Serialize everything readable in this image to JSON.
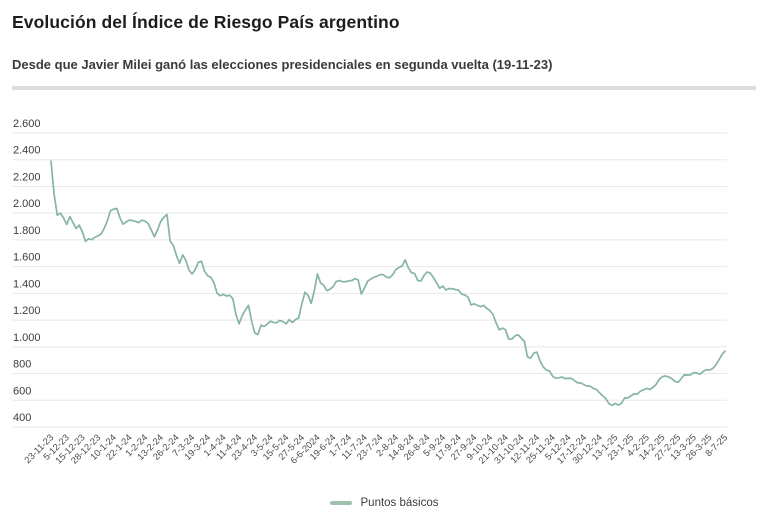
{
  "header": {
    "title": "Evolución del Índice de Riesgo País argentino",
    "subtitle": "Desde que Javier Milei ganó las elecciones presidenciales en segunda vuelta (19-11-23)"
  },
  "legend": {
    "label": "Puntos básicos",
    "swatch_color": "#9cc2b0"
  },
  "chart_data": {
    "type": "line",
    "title": "Evolución del Índice de Riesgo País argentino",
    "series_name": "Puntos básicos",
    "ylabel": "Puntos básicos",
    "ylim": [
      400,
      2600
    ],
    "grid": true,
    "legend_position": "bottom",
    "line_color": "#86b5a0",
    "grid_color": "#e8e8e8",
    "y_tick_color": "#3d3d3d",
    "x_tick_color": "#4a4a4a",
    "y_ticks": [
      400,
      600,
      800,
      1000,
      1200,
      1400,
      1600,
      1800,
      2000,
      2200,
      2400,
      2600
    ],
    "y_tick_labels": [
      "400",
      "600",
      "800",
      "1.000",
      "1.200",
      "1.400",
      "1.600",
      "1.800",
      "2.000",
      "2.200",
      "2.400",
      "2.600"
    ],
    "x_labels": [
      "23-11-23",
      "5-12-23",
      "15-12-23",
      "28-12-23",
      "10-1-24",
      "22-1-24",
      "1-2-24",
      "13-2-24",
      "26-2-24",
      "7-3-24",
      "19-3-24",
      "1-4-24",
      "11-4-24",
      "23-4-24",
      "3-5-24",
      "15-5-24",
      "27-5-24",
      "6-6-2024",
      "19-6-24",
      "1-7-24",
      "11-7-24",
      "23-7-24",
      "2-8-24",
      "14-8-24",
      "26-8-24",
      "5-9-24",
      "17-9-24",
      "27-9-24",
      "9-10-24",
      "21-10-24",
      "31-10-24",
      "12-11-24",
      "25-11-24",
      "5-12-24",
      "17-12-24",
      "30-12-24",
      "13-1-25",
      "23-1-25",
      "4-2-25",
      "14-2-25",
      "27-2-25",
      "13-3-25",
      "26-3-25",
      "8-7-25"
    ],
    "values": [
      2390,
      2140,
      1985,
      2000,
      1965,
      1915,
      1975,
      1930,
      1885,
      1910,
      1860,
      1790,
      1808,
      1802,
      1820,
      1830,
      1845,
      1888,
      1945,
      2020,
      2030,
      2035,
      1965,
      1918,
      1935,
      1948,
      1945,
      1938,
      1930,
      1948,
      1940,
      1922,
      1872,
      1824,
      1875,
      1938,
      1970,
      1990,
      1790,
      1760,
      1685,
      1625,
      1688,
      1648,
      1575,
      1545,
      1578,
      1632,
      1640,
      1565,
      1532,
      1520,
      1478,
      1400,
      1382,
      1392,
      1380,
      1386,
      1360,
      1242,
      1172,
      1235,
      1275,
      1310,
      1193,
      1103,
      1092,
      1162,
      1152,
      1170,
      1192,
      1182,
      1180,
      1198,
      1188,
      1172,
      1203,
      1182,
      1203,
      1215,
      1320,
      1408,
      1385,
      1325,
      1420,
      1545,
      1478,
      1460,
      1420,
      1432,
      1450,
      1488,
      1496,
      1487,
      1487,
      1494,
      1496,
      1510,
      1500,
      1395,
      1440,
      1490,
      1507,
      1520,
      1528,
      1540,
      1540,
      1521,
      1517,
      1540,
      1578,
      1594,
      1605,
      1650,
      1590,
      1555,
      1548,
      1496,
      1492,
      1535,
      1560,
      1552,
      1518,
      1478,
      1438,
      1455,
      1425,
      1436,
      1435,
      1428,
      1425,
      1394,
      1388,
      1372,
      1313,
      1322,
      1310,
      1300,
      1310,
      1288,
      1270,
      1242,
      1178,
      1127,
      1140,
      1128,
      1058,
      1058,
      1082,
      1090,
      1066,
      1040,
      925,
      915,
      953,
      960,
      895,
      850,
      826,
      820,
      780,
      766,
      768,
      774,
      762,
      765,
      764,
      746,
      731,
      729,
      717,
      706,
      706,
      689,
      681,
      655,
      633,
      612,
      574,
      563,
      576,
      564,
      578,
      618,
      618,
      633,
      648,
      645,
      668,
      677,
      689,
      680,
      697,
      718,
      756,
      776,
      782,
      775,
      762,
      742,
      734,
      760,
      790,
      788,
      790,
      807,
      804,
      795,
      815,
      829,
      826,
      836,
      862,
      900,
      940,
      968
    ]
  }
}
